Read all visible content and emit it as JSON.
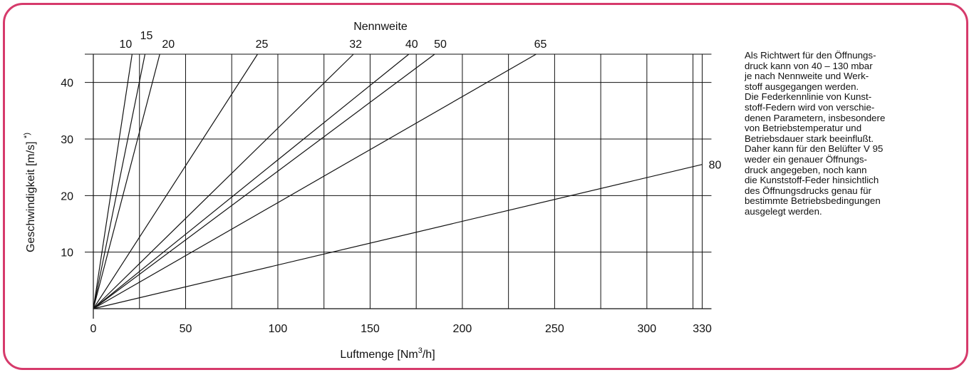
{
  "chart_data": {
    "type": "line",
    "title": "Nennweite",
    "xlabel": "Luftmenge [Nm³/h]",
    "ylabel": "Geschwindigkeit [m/s] *)",
    "xlim": [
      0,
      335
    ],
    "ylim": [
      0,
      45
    ],
    "x_ticks": [
      0,
      50,
      100,
      150,
      200,
      250,
      300,
      330
    ],
    "y_ticks": [
      10,
      20,
      30,
      40
    ],
    "x_gridlines": [
      0,
      25,
      50,
      75,
      100,
      125,
      150,
      175,
      200,
      225,
      250,
      275,
      300,
      325,
      330
    ],
    "y_gridlines": [
      10,
      20,
      30,
      40
    ],
    "grid": true,
    "series": [
      {
        "name": "10",
        "x": [
          0,
          21
        ],
        "y": [
          0,
          45
        ]
      },
      {
        "name": "15",
        "x": [
          0,
          28
        ],
        "y": [
          0,
          45
        ]
      },
      {
        "name": "20",
        "x": [
          0,
          36
        ],
        "y": [
          0,
          45
        ]
      },
      {
        "name": "25",
        "x": [
          0,
          89
        ],
        "y": [
          0,
          45
        ]
      },
      {
        "name": "32",
        "x": [
          0,
          141
        ],
        "y": [
          0,
          45
        ]
      },
      {
        "name": "40",
        "x": [
          0,
          171
        ],
        "y": [
          0,
          45
        ]
      },
      {
        "name": "50",
        "x": [
          0,
          185
        ],
        "y": [
          0,
          45
        ]
      },
      {
        "name": "65",
        "x": [
          0,
          240
        ],
        "y": [
          0,
          45
        ]
      },
      {
        "name": "80",
        "x": [
          0,
          330
        ],
        "y": [
          0,
          25.5
        ]
      }
    ]
  },
  "note_lines": [
    "Als Richtwert für den Öffnungs-",
    "druck kann von 40 – 130 mbar",
    "je nach Nennweite und Werk-",
    "stoff ausgegangen werden.",
    "Die Federkennlinie von Kunst-",
    "stoff-Federn wird von verschie-",
    "denen Parametern, insbesondere",
    "von Betriebstemperatur und",
    "Betriebsdauer stark beeinflußt.",
    "Daher kann für den Belüfter V 95",
    "weder ein genauer  Öffnungs-",
    "druck angegeben, noch kann",
    "die Kunststoff-Feder hinsichtlich",
    "des Öffnungsdrucks  genau für",
    "bestimmte Betriebsbedingungen",
    "ausgelegt werden."
  ],
  "colors": {
    "frame": "#d63a6b",
    "ink": "#111111"
  }
}
